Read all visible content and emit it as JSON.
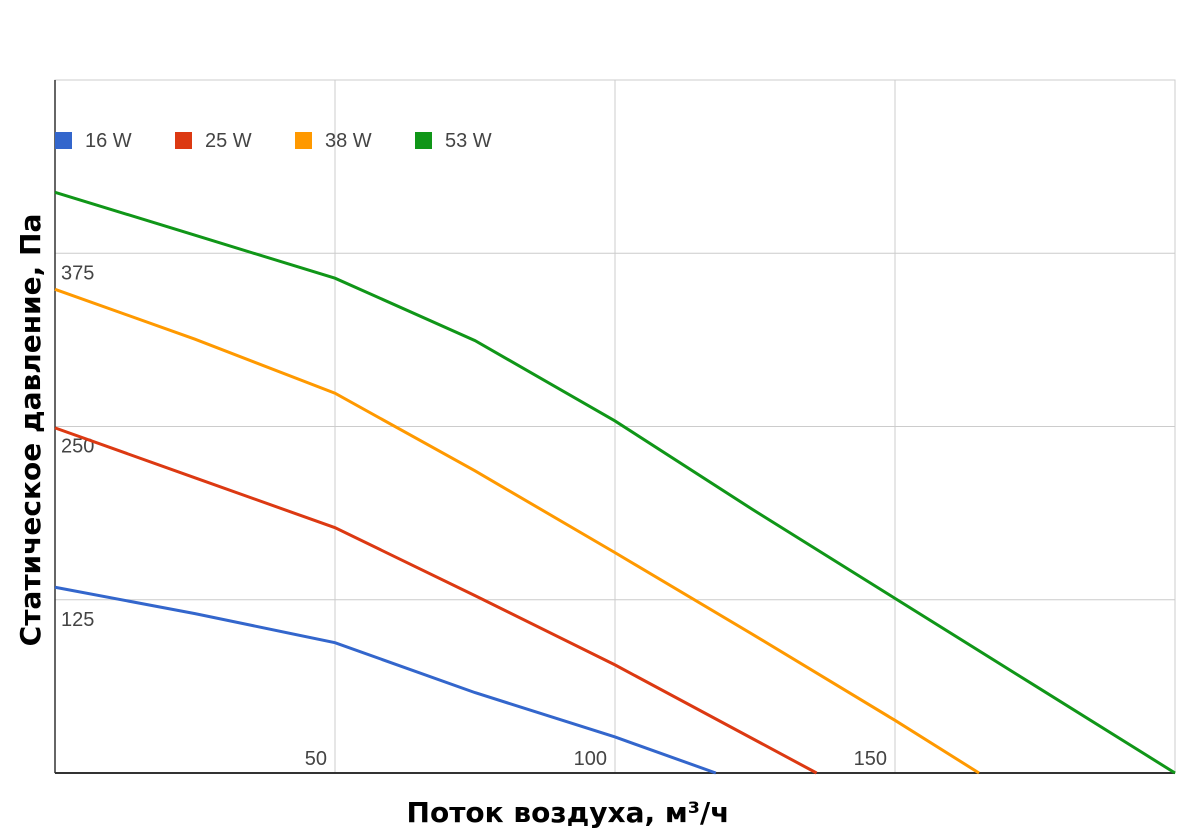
{
  "chart_data": {
    "type": "line",
    "x_label": "Поток воздуха, м³/ч",
    "y_label": "Статическое давление, Па",
    "xlim": [
      0,
      200
    ],
    "xticks": [
      50,
      100,
      150
    ],
    "ylim": [
      0,
      500
    ],
    "yticks": [
      125,
      250,
      375
    ],
    "grid": true,
    "legend": "top-left",
    "series": [
      {
        "name": "16 W",
        "color": "#3366cc",
        "x": [
          0,
          25,
          50,
          75,
          100,
          118
        ],
        "values": [
          134,
          115,
          94,
          58,
          26,
          0
        ]
      },
      {
        "name": "25 W",
        "color": "#dc3912",
        "x": [
          0,
          25,
          50,
          75,
          100,
          136
        ],
        "values": [
          249,
          213,
          177,
          128,
          78,
          0
        ]
      },
      {
        "name": "38 W",
        "color": "#ff9900",
        "x": [
          0,
          25,
          50,
          75,
          100,
          125,
          150,
          165
        ],
        "values": [
          349,
          313,
          274,
          218,
          159,
          99,
          38,
          0
        ]
      },
      {
        "name": "53 W",
        "color": "#109618",
        "x": [
          0,
          25,
          50,
          75,
          100,
          125,
          150,
          175,
          200
        ],
        "values": [
          419,
          388,
          357,
          312,
          254,
          189,
          126,
          63,
          0
        ]
      }
    ]
  }
}
